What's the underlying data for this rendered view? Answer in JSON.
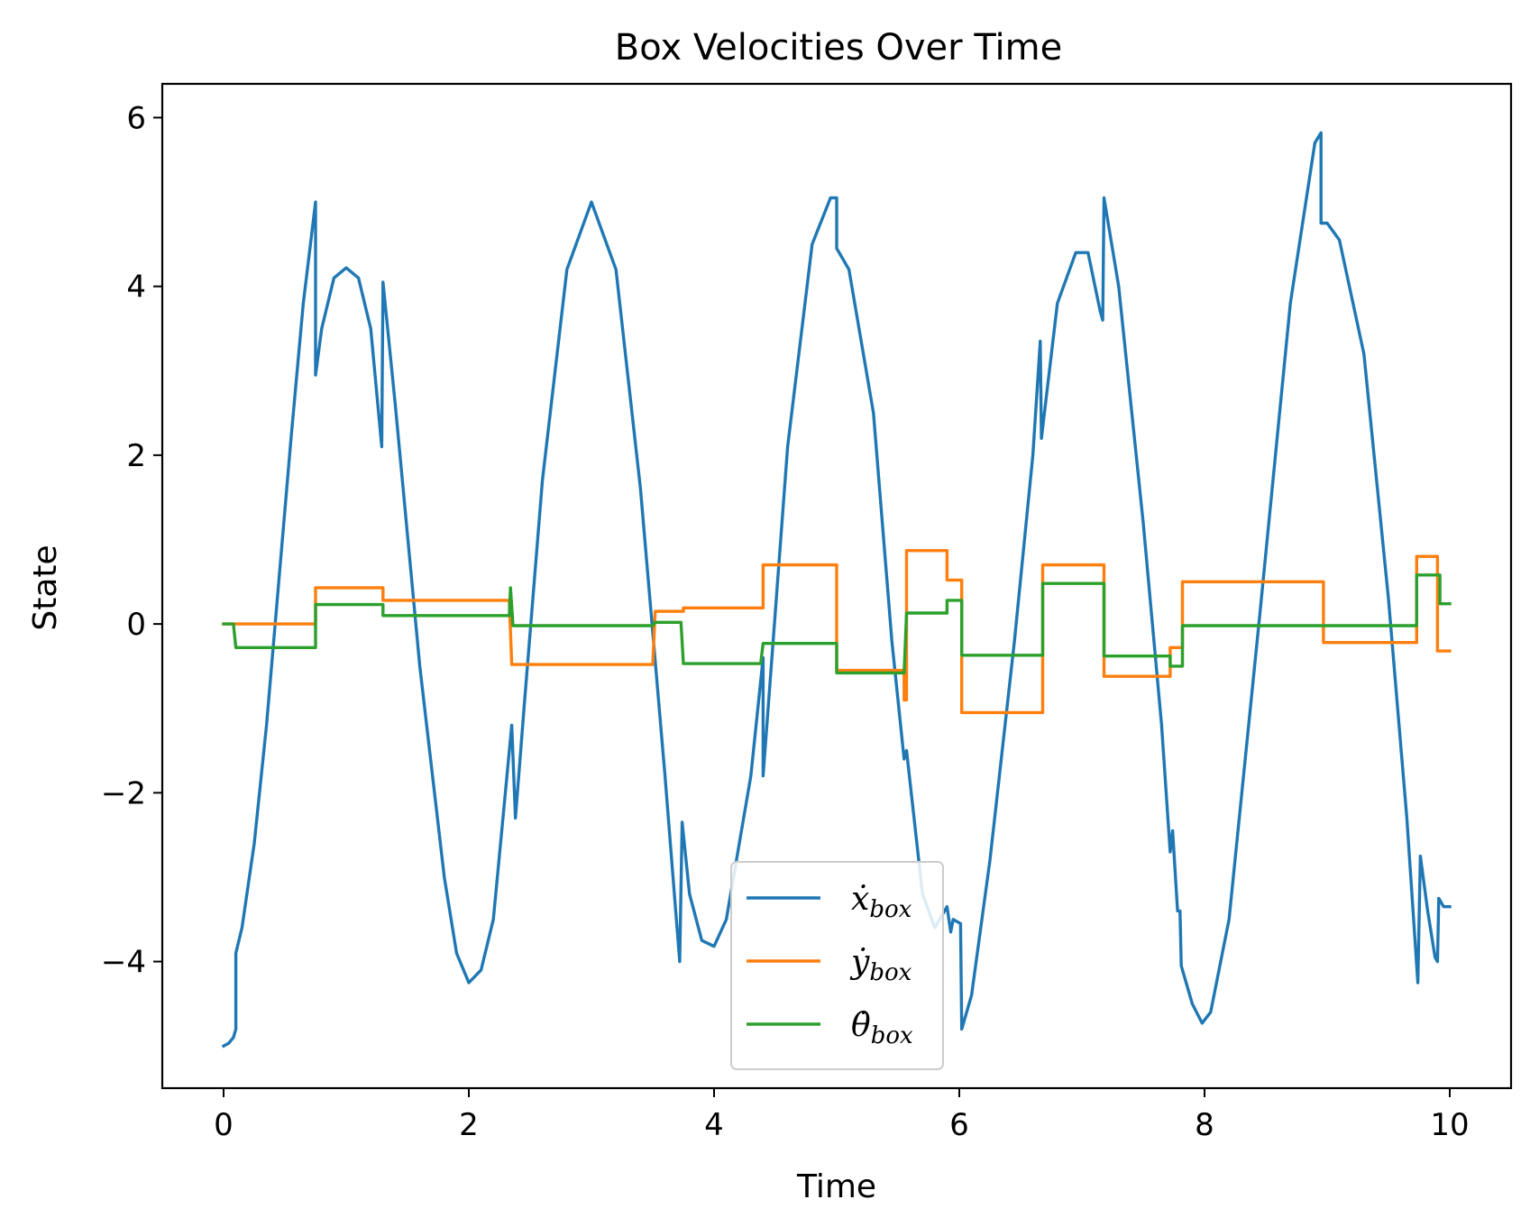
{
  "chart_data": {
    "type": "line",
    "title": "Box Velocities Over Time",
    "xlabel": "Time",
    "ylabel": "State",
    "xlim": [
      -0.5,
      10.5
    ],
    "ylim": [
      -5.5,
      6.4
    ],
    "xticks": [
      0,
      2,
      4,
      6,
      8,
      10
    ],
    "yticks": [
      -4,
      -2,
      0,
      2,
      4,
      6
    ],
    "xtick_labels": [
      "0",
      "2",
      "4",
      "6",
      "8",
      "10"
    ],
    "ytick_labels": [
      "−4",
      "−2",
      "0",
      "2",
      "4",
      "6"
    ],
    "grid": false,
    "legend": "lower-center",
    "series": [
      {
        "symbol": "ẋ",
        "sub": "box",
        "color": "#1f77b4",
        "points": [
          [
            0,
            -5
          ],
          [
            0.04,
            -4.97
          ],
          [
            0.08,
            -4.9
          ],
          [
            0.1,
            -4.8
          ],
          [
            0.1,
            -3.9
          ],
          [
            0.15,
            -3.6
          ],
          [
            0.25,
            -2.6
          ],
          [
            0.35,
            -1.2
          ],
          [
            0.45,
            0.5
          ],
          [
            0.55,
            2.2
          ],
          [
            0.65,
            3.8
          ],
          [
            0.75,
            5.0
          ],
          [
            0.75,
            2.95
          ],
          [
            0.8,
            3.5
          ],
          [
            0.9,
            4.1
          ],
          [
            1.0,
            4.22
          ],
          [
            1.1,
            4.1
          ],
          [
            1.2,
            3.5
          ],
          [
            1.29,
            2.1
          ],
          [
            1.3,
            4.05
          ],
          [
            1.4,
            2.6
          ],
          [
            1.6,
            -0.5
          ],
          [
            1.8,
            -3.0
          ],
          [
            1.9,
            -3.9
          ],
          [
            2.0,
            -4.25
          ],
          [
            2.1,
            -4.1
          ],
          [
            2.2,
            -3.5
          ],
          [
            2.35,
            -1.2
          ],
          [
            2.38,
            -2.3
          ],
          [
            2.45,
            -1.0
          ],
          [
            2.6,
            1.7
          ],
          [
            2.8,
            4.2
          ],
          [
            3.0,
            5.0
          ],
          [
            3.2,
            4.2
          ],
          [
            3.4,
            1.6
          ],
          [
            3.6,
            -1.8
          ],
          [
            3.72,
            -4.0
          ],
          [
            3.74,
            -2.35
          ],
          [
            3.8,
            -3.2
          ],
          [
            3.9,
            -3.75
          ],
          [
            4.0,
            -3.82
          ],
          [
            4.1,
            -3.5
          ],
          [
            4.3,
            -1.8
          ],
          [
            4.4,
            -0.4
          ],
          [
            4.4,
            -1.8
          ],
          [
            4.6,
            2.1
          ],
          [
            4.8,
            4.5
          ],
          [
            4.95,
            5.05
          ],
          [
            5.0,
            5.05
          ],
          [
            5.0,
            4.45
          ],
          [
            5.1,
            4.2
          ],
          [
            5.3,
            2.5
          ],
          [
            5.45,
            -0.2
          ],
          [
            5.55,
            -1.6
          ],
          [
            5.57,
            -1.5
          ],
          [
            5.7,
            -3.2
          ],
          [
            5.8,
            -3.6
          ],
          [
            5.9,
            -3.35
          ],
          [
            5.93,
            -3.65
          ],
          [
            5.95,
            -3.5
          ],
          [
            6.01,
            -3.55
          ],
          [
            6.02,
            -4.8
          ],
          [
            6.1,
            -4.4
          ],
          [
            6.25,
            -2.8
          ],
          [
            6.45,
            -0.2
          ],
          [
            6.6,
            2.0
          ],
          [
            6.66,
            3.35
          ],
          [
            6.67,
            2.2
          ],
          [
            6.8,
            3.8
          ],
          [
            6.95,
            4.4
          ],
          [
            7.05,
            4.4
          ],
          [
            7.15,
            3.7
          ],
          [
            7.17,
            3.6
          ],
          [
            7.18,
            5.05
          ],
          [
            7.3,
            4.0
          ],
          [
            7.5,
            1.2
          ],
          [
            7.65,
            -1.2
          ],
          [
            7.72,
            -2.7
          ],
          [
            7.74,
            -2.45
          ],
          [
            7.78,
            -3.4
          ],
          [
            7.8,
            -3.4
          ],
          [
            7.81,
            -4.05
          ],
          [
            7.9,
            -4.5
          ],
          [
            7.98,
            -4.73
          ],
          [
            8.05,
            -4.6
          ],
          [
            8.2,
            -3.5
          ],
          [
            8.45,
            0.1
          ],
          [
            8.7,
            3.8
          ],
          [
            8.9,
            5.7
          ],
          [
            8.95,
            5.82
          ],
          [
            8.95,
            4.75
          ],
          [
            9.0,
            4.75
          ],
          [
            9.1,
            4.55
          ],
          [
            9.3,
            3.2
          ],
          [
            9.5,
            0.3
          ],
          [
            9.65,
            -2.3
          ],
          [
            9.74,
            -4.25
          ],
          [
            9.76,
            -2.75
          ],
          [
            9.82,
            -3.4
          ],
          [
            9.88,
            -3.95
          ],
          [
            9.9,
            -4.0
          ],
          [
            9.91,
            -3.25
          ],
          [
            9.95,
            -3.35
          ],
          [
            10.0,
            -3.35
          ]
        ]
      },
      {
        "symbol": "ẏ",
        "sub": "box",
        "color": "#ff7f0e",
        "points": [
          [
            0,
            0
          ],
          [
            0.75,
            0
          ],
          [
            0.75,
            0.43
          ],
          [
            1.3,
            0.43
          ],
          [
            1.3,
            0.28
          ],
          [
            2.33,
            0.28
          ],
          [
            2.35,
            -0.48
          ],
          [
            3.5,
            -0.48
          ],
          [
            3.52,
            0.15
          ],
          [
            3.75,
            0.15
          ],
          [
            3.75,
            0.19
          ],
          [
            4.4,
            0.19
          ],
          [
            4.4,
            0.7
          ],
          [
            5.0,
            0.7
          ],
          [
            5.0,
            -0.55
          ],
          [
            5.55,
            -0.55
          ],
          [
            5.55,
            -0.9
          ],
          [
            5.57,
            -0.9
          ],
          [
            5.57,
            0.87
          ],
          [
            5.9,
            0.87
          ],
          [
            5.9,
            0.52
          ],
          [
            6.02,
            0.52
          ],
          [
            6.02,
            -1.05
          ],
          [
            6.68,
            -1.05
          ],
          [
            6.68,
            0.7
          ],
          [
            7.18,
            0.7
          ],
          [
            7.18,
            -0.62
          ],
          [
            7.72,
            -0.62
          ],
          [
            7.72,
            -0.28
          ],
          [
            7.82,
            -0.28
          ],
          [
            7.82,
            0.5
          ],
          [
            8.97,
            0.5
          ],
          [
            8.97,
            -0.22
          ],
          [
            9.73,
            -0.22
          ],
          [
            9.73,
            0.8
          ],
          [
            9.9,
            0.8
          ],
          [
            9.9,
            -0.32
          ],
          [
            10.0,
            -0.32
          ]
        ]
      },
      {
        "symbol": "θ̇",
        "sub": "box",
        "color": "#2ca02c",
        "points": [
          [
            0,
            0
          ],
          [
            0.08,
            0
          ],
          [
            0.1,
            -0.28
          ],
          [
            0.75,
            -0.28
          ],
          [
            0.75,
            0.23
          ],
          [
            1.3,
            0.23
          ],
          [
            1.3,
            0.1
          ],
          [
            2.33,
            0.1
          ],
          [
            2.34,
            0.43
          ],
          [
            2.36,
            -0.02
          ],
          [
            3.5,
            -0.02
          ],
          [
            3.52,
            0.02
          ],
          [
            3.73,
            0.02
          ],
          [
            3.75,
            -0.47
          ],
          [
            4.38,
            -0.47
          ],
          [
            4.4,
            -0.23
          ],
          [
            5.0,
            -0.23
          ],
          [
            5.0,
            -0.58
          ],
          [
            5.55,
            -0.58
          ],
          [
            5.57,
            0.13
          ],
          [
            5.9,
            0.13
          ],
          [
            5.9,
            0.28
          ],
          [
            6.02,
            0.28
          ],
          [
            6.02,
            -0.37
          ],
          [
            6.68,
            -0.37
          ],
          [
            6.68,
            0.48
          ],
          [
            7.18,
            0.48
          ],
          [
            7.18,
            -0.38
          ],
          [
            7.72,
            -0.38
          ],
          [
            7.72,
            -0.5
          ],
          [
            7.82,
            -0.5
          ],
          [
            7.82,
            -0.02
          ],
          [
            9.73,
            -0.02
          ],
          [
            9.73,
            0.58
          ],
          [
            9.92,
            0.58
          ],
          [
            9.92,
            0.24
          ],
          [
            10.0,
            0.24
          ]
        ]
      }
    ]
  }
}
